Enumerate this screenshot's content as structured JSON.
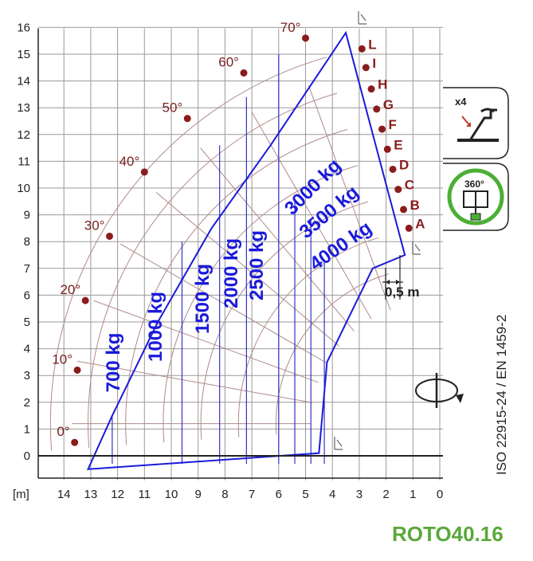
{
  "chart_data": {
    "type": "load-chart",
    "x_unit": "[m]",
    "x_ticks": [
      14,
      13,
      12,
      11,
      10,
      9,
      8,
      7,
      6,
      5,
      4,
      3,
      2,
      1,
      0
    ],
    "y_ticks": [
      0,
      1,
      2,
      3,
      4,
      5,
      6,
      7,
      8,
      9,
      10,
      11,
      12,
      13,
      14,
      15,
      16
    ],
    "xlim": [
      0,
      14.5
    ],
    "ylim": [
      -0.5,
      16.2
    ],
    "x_reversed": true,
    "grid": true,
    "envelope": [
      [
        13.1,
        -0.5
      ],
      [
        12.2,
        1.5
      ],
      [
        10.5,
        5.0
      ],
      [
        8.5,
        8.5
      ],
      [
        6.3,
        11.6
      ],
      [
        3.5,
        15.8
      ],
      [
        1.3,
        7.5
      ],
      [
        2.5,
        7.0
      ],
      [
        4.2,
        3.5
      ],
      [
        4.5,
        0.1
      ]
    ],
    "boom_angles": [
      {
        "label": "0°",
        "x": 13.6,
        "y": 0.5
      },
      {
        "label": "10°",
        "x": 13.5,
        "y": 3.2
      },
      {
        "label": "20°",
        "x": 13.2,
        "y": 5.8
      },
      {
        "label": "30°",
        "x": 12.3,
        "y": 8.2
      },
      {
        "label": "40°",
        "x": 11.0,
        "y": 10.6
      },
      {
        "label": "50°",
        "x": 9.4,
        "y": 12.6
      },
      {
        "label": "60°",
        "x": 7.3,
        "y": 14.3
      },
      {
        "label": "70°",
        "x": 5.0,
        "y": 15.6
      }
    ],
    "extension_markers": [
      {
        "label": "A",
        "x": 1.15,
        "y": 8.5
      },
      {
        "label": "B",
        "x": 1.35,
        "y": 9.2
      },
      {
        "label": "C",
        "x": 1.55,
        "y": 9.95
      },
      {
        "label": "D",
        "x": 1.75,
        "y": 10.7
      },
      {
        "label": "E",
        "x": 1.95,
        "y": 11.45
      },
      {
        "label": "F",
        "x": 2.15,
        "y": 12.2
      },
      {
        "label": "G",
        "x": 2.35,
        "y": 12.95
      },
      {
        "label": "H",
        "x": 2.55,
        "y": 13.7
      },
      {
        "label": "I",
        "x": 2.75,
        "y": 14.5
      },
      {
        "label": "L",
        "x": 2.9,
        "y": 15.2
      }
    ],
    "load_zones": [
      {
        "label": "700 kg",
        "limit_x": 12.2
      },
      {
        "label": "1000 kg",
        "limit_x": 9.6
      },
      {
        "label": "1500 kg",
        "limit_x": 8.2
      },
      {
        "label": "2000 kg",
        "limit_x": 7.2
      },
      {
        "label": "2500 kg",
        "limit_x": 6.0
      },
      {
        "label": "3000 kg",
        "limit_x": 5.4
      },
      {
        "label": "3500 kg",
        "limit_x": 4.8
      },
      {
        "label": "4000 kg",
        "limit_x": 4.3
      }
    ],
    "scale_bar_label": "0,5 m",
    "standard": "ISO 22915-24 / EN 1459-2"
  },
  "icons": [
    "outrigger-x4-icon",
    "rotation-360-icon",
    "rotation-arrow-icon",
    "stabilizer-foot-icon"
  ],
  "icon_texts": {
    "outriggers": "x4",
    "rotation": "360°"
  },
  "colors": {
    "envelope": "#1a1adb",
    "angle_dot": "#8b1c1c",
    "grid": "#999999",
    "arc": "#b08a8a",
    "model": "#5aa83a",
    "ring": "#4caf35"
  },
  "model": "ROTO40.16"
}
